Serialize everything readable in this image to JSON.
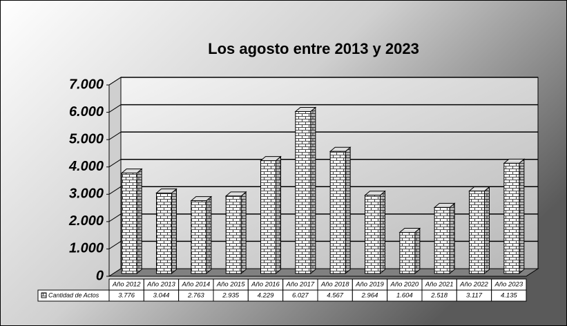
{
  "chart_data": {
    "type": "bar3d",
    "title": "Los agosto entre 2013 y 2023",
    "categories": [
      "Año 2012",
      "Año 2013",
      "Año 2014",
      "Año 2015",
      "Año 2016",
      "Año 2017",
      "Año 2018",
      "Año 2019",
      "Año 2020",
      "Año 2021",
      "Año 2022",
      "Año 2023"
    ],
    "series": [
      {
        "name": "Cantidad de Actos",
        "values": [
          3776,
          3044,
          2763,
          2935,
          4229,
          6027,
          4567,
          2964,
          1604,
          2518,
          3117,
          4135
        ],
        "value_labels": [
          "3.776",
          "3.044",
          "2.763",
          "2.935",
          "4.229",
          "6.027",
          "4.567",
          "2.964",
          "1.604",
          "2.518",
          "3.117",
          "4.135"
        ]
      }
    ],
    "ylim": [
      0,
      7000
    ],
    "yticks": [
      0,
      {
        "value": 1000,
        "label": "1.000"
      },
      {
        "value": 2000,
        "label": "2.000"
      },
      {
        "value": 3000,
        "label": "3.000"
      },
      {
        "value": 4000,
        "label": "4.000"
      },
      {
        "value": 5000,
        "label": "5.000"
      },
      {
        "value": 6000,
        "label": "6.000"
      },
      {
        "value": 7000,
        "label": "7.000"
      }
    ],
    "grid": true,
    "data_table": true
  }
}
